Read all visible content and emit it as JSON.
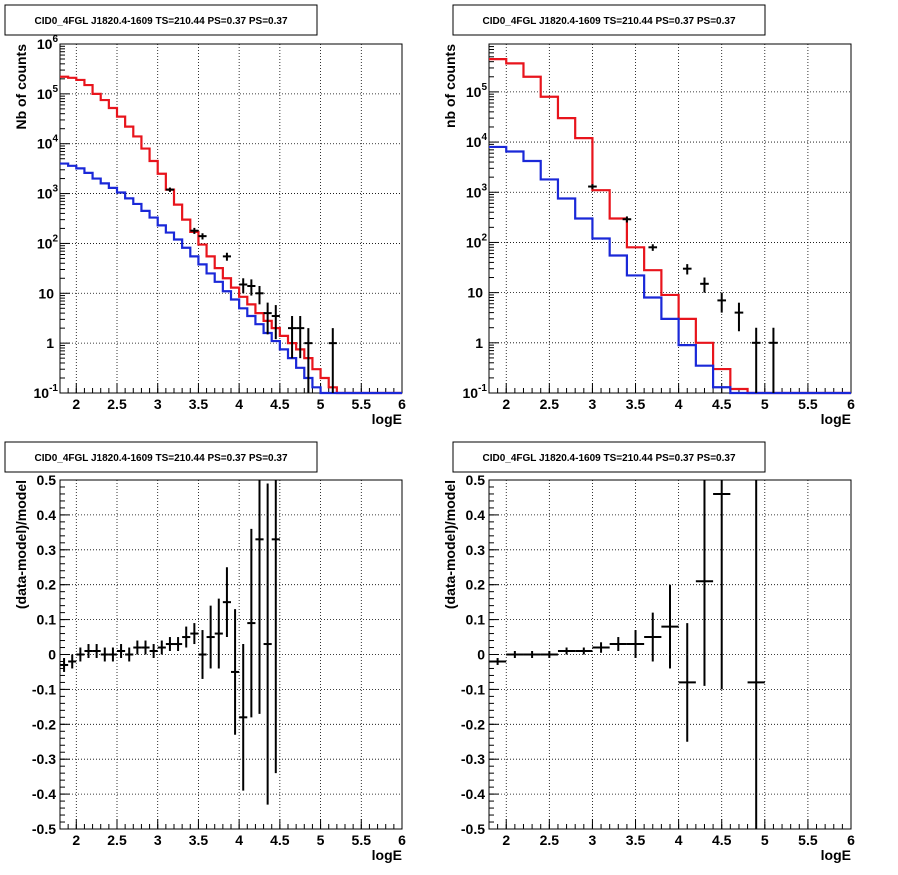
{
  "chart_data": [
    {
      "type": "line",
      "title": "CID0_4FGL J1820.4-1609 TS=210.44 PS=0.37 PS=0.37",
      "xlabel": "logE",
      "ylabel": "Nb of counts",
      "xlim": [
        1.8,
        6.0
      ],
      "ylim": [
        0.1,
        1000000
      ],
      "yscale": "log",
      "grid": true,
      "xticks": [
        "2",
        "2.5",
        "3",
        "3.5",
        "4",
        "4.5",
        "5",
        "5.5",
        "6"
      ],
      "yticks": [
        {
          "base": "10",
          "exp": "-1",
          "value": 0.1
        },
        {
          "base": "1",
          "exp": "",
          "value": 1
        },
        {
          "base": "10",
          "exp": "",
          "value": 10
        },
        {
          "base": "10",
          "exp": "2",
          "value": 100
        },
        {
          "base": "10",
          "exp": "3",
          "value": 1000
        },
        {
          "base": "10",
          "exp": "4",
          "value": 10000
        },
        {
          "base": "10",
          "exp": "5",
          "value": 100000
        },
        {
          "base": "10",
          "exp": "6",
          "value": 1000000
        }
      ],
      "bin_edges": [
        1.8,
        1.9,
        2.0,
        2.1,
        2.2,
        2.3,
        2.4,
        2.5,
        2.6,
        2.7,
        2.8,
        2.9,
        3.0,
        3.1,
        3.2,
        3.3,
        3.4,
        3.5,
        3.6,
        3.7,
        3.8,
        3.9,
        4.0,
        4.1,
        4.2,
        4.3,
        4.4,
        4.5,
        4.6,
        4.7,
        4.8,
        4.9,
        5.0,
        5.1,
        5.2,
        5.3,
        5.4,
        5.5,
        5.6,
        5.7,
        5.8,
        5.9,
        6.0
      ],
      "series": [
        {
          "color": "#e8141c",
          "values": [
            220000,
            210000,
            190000,
            150000,
            100000,
            75000,
            52000,
            35000,
            22000,
            14000,
            8000,
            4500,
            2500,
            1200,
            600,
            300,
            170,
            95,
            55,
            32,
            20,
            13,
            8.5,
            6,
            4,
            2.8,
            2,
            1.4,
            1,
            0.75,
            0.5,
            0.3,
            0.2,
            0.13,
            0.1,
            0.09,
            0.09,
            0.09,
            0.09,
            0.09,
            0.09,
            0.09
          ]
        },
        {
          "color": "#1a28d8",
          "values": [
            4000,
            3600,
            3200,
            2600,
            2000,
            1600,
            1300,
            1050,
            800,
            620,
            450,
            330,
            230,
            165,
            120,
            82,
            55,
            38,
            25,
            17,
            11,
            7.5,
            5,
            3.5,
            2.4,
            1.6,
            1.1,
            0.75,
            0.5,
            0.32,
            0.2,
            0.13,
            0.09,
            0.09,
            0.09,
            0.09,
            0.09,
            0.09,
            0.09,
            0.09,
            0.09,
            0.09
          ]
        }
      ],
      "points": [
        {
          "x": 3.15,
          "y": 1200,
          "yerr": 120
        },
        {
          "x": 3.45,
          "y": 180,
          "yerr": 25
        },
        {
          "x": 3.55,
          "y": 140,
          "yerr": 20
        },
        {
          "x": 3.85,
          "y": 55,
          "yerr": 10
        },
        {
          "x": 4.05,
          "y": 15,
          "yerr": 5
        },
        {
          "x": 4.15,
          "y": 14,
          "yerr": 5
        },
        {
          "x": 4.25,
          "y": 10,
          "yerr": 4
        },
        {
          "x": 4.35,
          "y": 4,
          "yerr": 2.5
        },
        {
          "x": 4.45,
          "y": 3.5,
          "yerr": 2.3
        },
        {
          "x": 4.65,
          "y": 2,
          "yerr": 1.5
        },
        {
          "x": 4.75,
          "y": 2,
          "yerr": 1.5
        },
        {
          "x": 4.85,
          "y": 1,
          "yerr": 1
        },
        {
          "x": 5.15,
          "y": 1,
          "yerr": 1
        }
      ]
    },
    {
      "type": "line",
      "title": "CID0_4FGL J1820.4-1609 TS=210.44 PS=0.37 PS=0.37",
      "xlabel": "logE",
      "ylabel": "nb of counts",
      "xlim": [
        1.8,
        6.0
      ],
      "ylim": [
        0.1,
        900000
      ],
      "yscale": "log",
      "grid": true,
      "xticks": [
        "2",
        "2.5",
        "3",
        "3.5",
        "4",
        "4.5",
        "5",
        "5.5",
        "6"
      ],
      "yticks": [
        {
          "base": "10",
          "exp": "-1",
          "value": 0.1
        },
        {
          "base": "1",
          "exp": "",
          "value": 1
        },
        {
          "base": "10",
          "exp": "",
          "value": 10
        },
        {
          "base": "10",
          "exp": "2",
          "value": 100
        },
        {
          "base": "10",
          "exp": "3",
          "value": 1000
        },
        {
          "base": "10",
          "exp": "4",
          "value": 10000
        },
        {
          "base": "10",
          "exp": "5",
          "value": 100000
        }
      ],
      "bin_edges": [
        1.8,
        2.0,
        2.2,
        2.4,
        2.6,
        2.8,
        3.0,
        3.2,
        3.4,
        3.6,
        3.8,
        4.0,
        4.2,
        4.4,
        4.6,
        4.8,
        5.0,
        5.2,
        5.4,
        5.6,
        5.8,
        6.0
      ],
      "series": [
        {
          "color": "#e8141c",
          "values": [
            450000,
            370000,
            200000,
            80000,
            30000,
            12000,
            1100,
            300,
            80,
            28,
            9,
            3,
            1,
            0.3,
            0.12,
            0.09,
            0.09,
            0.09,
            0.09,
            0.09,
            0.09
          ]
        },
        {
          "color": "#1a28d8",
          "values": [
            8000,
            6500,
            4200,
            1800,
            750,
            300,
            120,
            55,
            22,
            8,
            3,
            0.9,
            0.35,
            0.13,
            0.09,
            0.09,
            0.09,
            0.09,
            0.09,
            0.09,
            0.09
          ]
        }
      ],
      "points": [
        {
          "x": 3.0,
          "y": 1300,
          "yerr": 150
        },
        {
          "x": 3.4,
          "y": 290,
          "yerr": 40
        },
        {
          "x": 3.7,
          "y": 80,
          "yerr": 12
        },
        {
          "x": 4.1,
          "y": 30,
          "yerr": 7
        },
        {
          "x": 4.3,
          "y": 15,
          "yerr": 5
        },
        {
          "x": 4.5,
          "y": 7,
          "yerr": 3
        },
        {
          "x": 4.7,
          "y": 4,
          "yerr": 2.3
        },
        {
          "x": 4.9,
          "y": 1,
          "yerr": 1
        },
        {
          "x": 5.1,
          "y": 1,
          "yerr": 1
        }
      ]
    },
    {
      "type": "scatter",
      "title": "CID0_4FGL J1820.4-1609 TS=210.44 PS=0.37 PS=0.37",
      "xlabel": "logE",
      "ylabel": "(data-model)/model",
      "xlim": [
        1.8,
        6.0
      ],
      "ylim": [
        -0.5,
        0.5
      ],
      "grid": true,
      "xticks": [
        "2",
        "2.5",
        "3",
        "3.5",
        "4",
        "4.5",
        "5",
        "5.5",
        "6"
      ],
      "yticks": [
        "-0.5",
        "-0.4",
        "-0.3",
        "-0.2",
        "-0.1",
        "0",
        "0.1",
        "0.2",
        "0.3",
        "0.4",
        "0.5"
      ],
      "points": [
        {
          "x": 1.85,
          "y": -0.03,
          "yerr": 0.02,
          "xerr": 0.05
        },
        {
          "x": 1.95,
          "y": -0.02,
          "yerr": 0.02,
          "xerr": 0.05
        },
        {
          "x": 2.05,
          "y": 0.0,
          "yerr": 0.02,
          "xerr": 0.05
        },
        {
          "x": 2.15,
          "y": 0.01,
          "yerr": 0.02,
          "xerr": 0.05
        },
        {
          "x": 2.25,
          "y": 0.01,
          "yerr": 0.02,
          "xerr": 0.05
        },
        {
          "x": 2.35,
          "y": 0.0,
          "yerr": 0.02,
          "xerr": 0.05
        },
        {
          "x": 2.45,
          "y": 0.0,
          "yerr": 0.02,
          "xerr": 0.05
        },
        {
          "x": 2.55,
          "y": 0.01,
          "yerr": 0.02,
          "xerr": 0.05
        },
        {
          "x": 2.65,
          "y": 0.0,
          "yerr": 0.02,
          "xerr": 0.05
        },
        {
          "x": 2.75,
          "y": 0.02,
          "yerr": 0.02,
          "xerr": 0.05
        },
        {
          "x": 2.85,
          "y": 0.02,
          "yerr": 0.02,
          "xerr": 0.05
        },
        {
          "x": 2.95,
          "y": 0.01,
          "yerr": 0.02,
          "xerr": 0.05
        },
        {
          "x": 3.05,
          "y": 0.02,
          "yerr": 0.02,
          "xerr": 0.05
        },
        {
          "x": 3.15,
          "y": 0.03,
          "yerr": 0.02,
          "xerr": 0.05
        },
        {
          "x": 3.25,
          "y": 0.03,
          "yerr": 0.02,
          "xerr": 0.05
        },
        {
          "x": 3.35,
          "y": 0.05,
          "yerr": 0.03,
          "xerr": 0.05
        },
        {
          "x": 3.45,
          "y": 0.06,
          "yerr": 0.03,
          "xerr": 0.05
        },
        {
          "x": 3.55,
          "y": 0.0,
          "yerr": 0.07,
          "xerr": 0.05
        },
        {
          "x": 3.65,
          "y": 0.05,
          "yerr": 0.09,
          "xerr": 0.05
        },
        {
          "x": 3.75,
          "y": 0.06,
          "yerr": 0.1,
          "xerr": 0.05
        },
        {
          "x": 3.85,
          "y": 0.15,
          "yerr": 0.1,
          "xerr": 0.05
        },
        {
          "x": 3.95,
          "y": -0.05,
          "yerr": 0.18,
          "xerr": 0.05
        },
        {
          "x": 4.05,
          "y": -0.18,
          "yerr": 0.21,
          "xerr": 0.05
        },
        {
          "x": 4.15,
          "y": 0.09,
          "yerr": 0.27,
          "xerr": 0.05
        },
        {
          "x": 4.25,
          "y": 0.33,
          "yerr": 0.5,
          "xerr": 0.05
        },
        {
          "x": 4.35,
          "y": 0.03,
          "yerr": 0.46,
          "xerr": 0.05
        },
        {
          "x": 4.45,
          "y": 0.33,
          "yerr": 0.67,
          "xerr": 0.05
        }
      ]
    },
    {
      "type": "scatter",
      "title": "CID0_4FGL J1820.4-1609 TS=210.44 PS=0.37 PS=0.37",
      "xlabel": "logE",
      "ylabel": "(data-model)/model",
      "xlim": [
        1.8,
        6.0
      ],
      "ylim": [
        -0.5,
        0.5
      ],
      "grid": true,
      "xticks": [
        "2",
        "2.5",
        "3",
        "3.5",
        "4",
        "4.5",
        "5",
        "5.5",
        "6"
      ],
      "yticks": [
        "-0.5",
        "-0.4",
        "-0.3",
        "-0.2",
        "-0.1",
        "0",
        "0.1",
        "0.2",
        "0.3",
        "0.4",
        "0.5"
      ],
      "points": [
        {
          "x": 1.9,
          "y": -0.02,
          "yerr": 0.01,
          "xerr": 0.1
        },
        {
          "x": 2.1,
          "y": 0.0,
          "yerr": 0.01,
          "xerr": 0.1
        },
        {
          "x": 2.3,
          "y": 0.0,
          "yerr": 0.01,
          "xerr": 0.1
        },
        {
          "x": 2.5,
          "y": 0.0,
          "yerr": 0.01,
          "xerr": 0.1
        },
        {
          "x": 2.7,
          "y": 0.01,
          "yerr": 0.01,
          "xerr": 0.1
        },
        {
          "x": 2.9,
          "y": 0.01,
          "yerr": 0.01,
          "xerr": 0.1
        },
        {
          "x": 3.1,
          "y": 0.02,
          "yerr": 0.015,
          "xerr": 0.1
        },
        {
          "x": 3.3,
          "y": 0.03,
          "yerr": 0.02,
          "xerr": 0.1
        },
        {
          "x": 3.5,
          "y": 0.03,
          "yerr": 0.04,
          "xerr": 0.1
        },
        {
          "x": 3.7,
          "y": 0.05,
          "yerr": 0.07,
          "xerr": 0.1
        },
        {
          "x": 3.9,
          "y": 0.08,
          "yerr": 0.12,
          "xerr": 0.1
        },
        {
          "x": 4.1,
          "y": -0.08,
          "yerr": 0.17,
          "xerr": 0.1
        },
        {
          "x": 4.3,
          "y": 0.21,
          "yerr": 0.3,
          "xerr": 0.1
        },
        {
          "x": 4.5,
          "y": 0.46,
          "yerr": 0.56,
          "xerr": 0.1
        },
        {
          "x": 4.9,
          "y": -0.08,
          "yerr": 0.6,
          "xerr": 0.1
        }
      ]
    }
  ]
}
